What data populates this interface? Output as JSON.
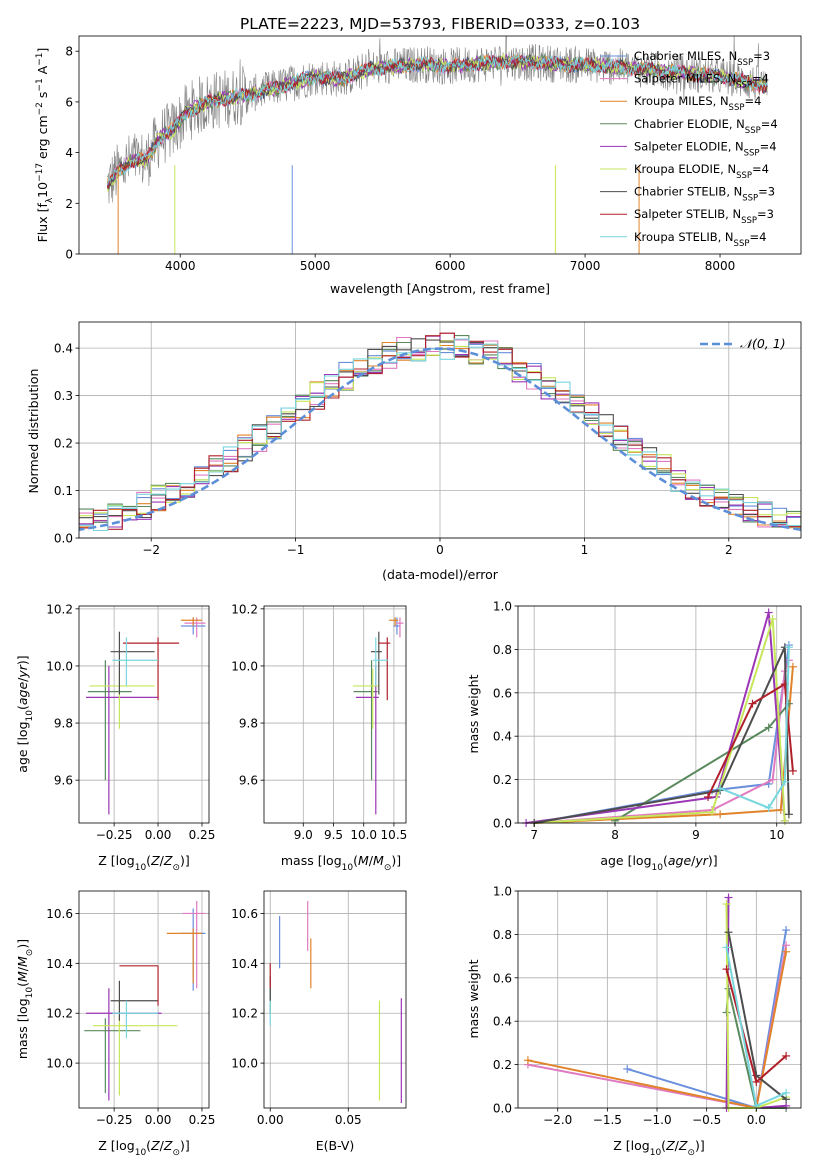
{
  "figure": {
    "title": "PLATE=2223, MJD=53793, FIBERID=0333, z=0.103"
  },
  "colors": {
    "Chabrier MILES": "#6a8fdc",
    "Salpeter MILES": "#e07ac0",
    "Kroupa MILES": "#e0832a",
    "Chabrier ELODIE": "#5a8a5e",
    "Salpeter ELODIE": "#9b36b6",
    "Kroupa ELODIE": "#c7e65a",
    "Chabrier STELIB": "#4d4d4d",
    "Salpeter STELIB": "#b0202a",
    "Kroupa STELIB": "#78d6de",
    "observed": "#808080",
    "normal": "#5d8fd8"
  },
  "legend_spectrum": [
    {
      "model": "Chabrier MILES",
      "text": "Chabrier MILES, N",
      "sub": "SSP",
      "tail": "=3"
    },
    {
      "model": "Salpeter MILES",
      "text": "Salpeter MILES, N",
      "sub": "SSP",
      "tail": "=4"
    },
    {
      "model": "Kroupa MILES",
      "text": "Kroupa MILES, N",
      "sub": "SSP",
      "tail": "=4"
    },
    {
      "model": "Chabrier ELODIE",
      "text": "Chabrier ELODIE, N",
      "sub": "SSP",
      "tail": "=4"
    },
    {
      "model": "Salpeter ELODIE",
      "text": "Salpeter ELODIE, N",
      "sub": "SSP",
      "tail": "=4"
    },
    {
      "model": "Kroupa ELODIE",
      "text": "Kroupa ELODIE, N",
      "sub": "SSP",
      "tail": "=4"
    },
    {
      "model": "Chabrier STELIB",
      "text": "Chabrier STELIB, N",
      "sub": "SSP",
      "tail": "=3"
    },
    {
      "model": "Salpeter STELIB",
      "text": "Salpeter STELIB, N",
      "sub": "SSP",
      "tail": "=3"
    },
    {
      "model": "Kroupa STELIB",
      "text": "Kroupa STELIB, N",
      "sub": "SSP",
      "tail": "=4"
    }
  ],
  "legend_hist": "𝒩(0, 1)",
  "chart_data": [
    {
      "panel": "spectrum",
      "type": "line",
      "title": "PLATE=2223, MJD=53793, FIBERID=0333, z=0.103",
      "xlabel": "wavelength [Angstrom, rest frame]",
      "ylabel": "Flux [f_λ 10^-17 erg cm^-2 s^-1 A^-1]",
      "xlim": [
        3250,
        8600
      ],
      "ylim": [
        0,
        8.6
      ],
      "xticks": [
        4000,
        5000,
        6000,
        7000,
        8000
      ],
      "yticks": [
        0,
        2,
        4,
        6,
        8
      ],
      "continuum": {
        "x": [
          3460,
          3550,
          3650,
          3750,
          3850,
          3950,
          4050,
          4200,
          4400,
          4600,
          4800,
          5000,
          5200,
          5400,
          5600,
          5800,
          6000,
          6200,
          6400,
          6600,
          6800,
          7000,
          7200,
          7400,
          7600,
          7800,
          8000,
          8200,
          8350
        ],
        "y": [
          2.7,
          3.3,
          3.7,
          3.7,
          4.6,
          4.9,
          5.6,
          6.0,
          6.2,
          6.4,
          6.7,
          7.0,
          6.9,
          7.3,
          7.4,
          7.5,
          7.4,
          7.5,
          7.6,
          7.55,
          7.5,
          7.45,
          7.4,
          7.3,
          7.2,
          7.1,
          7.0,
          6.8,
          6.6
        ]
      },
      "observed_noise": 0.75
    },
    {
      "panel": "residuals",
      "type": "histogram",
      "xlabel": "(data-model)/error",
      "ylabel": "Normed distribution",
      "xlim": [
        -2.5,
        2.5
      ],
      "ylim": [
        0,
        0.455
      ],
      "xticks": [
        -2,
        -1,
        0,
        1,
        2
      ],
      "yticks": [
        0,
        0.1,
        0.2,
        0.3,
        0.4
      ],
      "bin_width": 0.1,
      "reference": "N(0,1)"
    },
    {
      "panel": "Z-age",
      "type": "errorbar",
      "xlabel": "Z [log10(Z/Z_sun)]",
      "ylabel": "age [log10(age/yr)]",
      "xlim": [
        -0.45,
        0.29
      ],
      "ylim": [
        9.45,
        10.21
      ],
      "xticks": [
        -0.25,
        0.0,
        0.25
      ],
      "yticks": [
        9.6,
        9.8,
        10.0,
        10.2
      ],
      "points": [
        {
          "model": "Chabrier MILES",
          "x": 0.2,
          "y": 10.14,
          "xerr": [
            0.07,
            0.07
          ],
          "yerr": [
            0.03,
            0.03
          ]
        },
        {
          "model": "Salpeter MILES",
          "x": 0.22,
          "y": 10.15,
          "xerr": [
            0.07,
            0.05
          ],
          "yerr": [
            0.05,
            0.02
          ]
        },
        {
          "model": "Kroupa MILES",
          "x": 0.2,
          "y": 10.16,
          "xerr": [
            0.07,
            0.05
          ],
          "yerr": [
            0.02,
            0.01
          ]
        },
        {
          "model": "Chabrier ELODIE",
          "x": -0.3,
          "y": 9.91,
          "xerr": [
            0.1,
            0.15
          ],
          "yerr": [
            0.31,
            0.11
          ]
        },
        {
          "model": "Salpeter ELODIE",
          "x": -0.28,
          "y": 9.89,
          "xerr": [
            0.13,
            0.28
          ],
          "yerr": [
            0.41,
            0.11
          ]
        },
        {
          "model": "Kroupa ELODIE",
          "x": -0.22,
          "y": 9.93,
          "xerr": [
            0.17,
            0.2
          ],
          "yerr": [
            0.15,
            0.06
          ]
        },
        {
          "model": "Chabrier STELIB",
          "x": -0.22,
          "y": 10.05,
          "xerr": [
            0.05,
            0.2
          ],
          "yerr": [
            0.15,
            0.07
          ]
        },
        {
          "model": "Salpeter STELIB",
          "x": 0.0,
          "y": 10.08,
          "xerr": [
            0.2,
            0.12
          ],
          "yerr": [
            0.2,
            0.02
          ]
        },
        {
          "model": "Kroupa STELIB",
          "x": -0.18,
          "y": 10.02,
          "xerr": [
            0.08,
            0.18
          ],
          "yerr": [
            0.09,
            0.08
          ]
        }
      ]
    },
    {
      "panel": "mass-age",
      "type": "errorbar",
      "xlabel": "mass [log10(M/M_sun)]",
      "ylabel": "",
      "xlim": [
        8.35,
        10.7
      ],
      "ylim": [
        9.45,
        10.21
      ],
      "xticks": [
        9.0,
        9.5,
        10.0,
        10.5
      ],
      "yticks": [
        9.6,
        9.8,
        10.0,
        10.2
      ],
      "points": [
        {
          "model": "Chabrier MILES",
          "x": 10.55,
          "y": 10.14,
          "xerr": [
            0.06,
            0.06
          ],
          "yerr": [
            0.03,
            0.03
          ]
        },
        {
          "model": "Salpeter MILES",
          "x": 10.6,
          "y": 10.15,
          "xerr": [
            0.06,
            0.06
          ],
          "yerr": [
            0.05,
            0.02
          ]
        },
        {
          "model": "Kroupa MILES",
          "x": 10.52,
          "y": 10.16,
          "xerr": [
            0.1,
            0.05
          ],
          "yerr": [
            0.02,
            0.01
          ]
        },
        {
          "model": "Chabrier ELODIE",
          "x": 10.13,
          "y": 9.91,
          "xerr": [
            0.3,
            0.1
          ],
          "yerr": [
            0.31,
            0.11
          ]
        },
        {
          "model": "Salpeter ELODIE",
          "x": 10.2,
          "y": 9.89,
          "xerr": [
            0.33,
            0.05
          ],
          "yerr": [
            0.41,
            0.11
          ]
        },
        {
          "model": "Kroupa ELODIE",
          "x": 10.15,
          "y": 9.93,
          "xerr": [
            0.33,
            0.1
          ],
          "yerr": [
            0.15,
            0.06
          ]
        },
        {
          "model": "Chabrier STELIB",
          "x": 10.25,
          "y": 10.05,
          "xerr": [
            0.13,
            0.05
          ],
          "yerr": [
            0.15,
            0.07
          ]
        },
        {
          "model": "Salpeter STELIB",
          "x": 10.39,
          "y": 10.08,
          "xerr": [
            0.15,
            0.05
          ],
          "yerr": [
            0.2,
            0.02
          ]
        },
        {
          "model": "Kroupa STELIB",
          "x": 10.2,
          "y": 10.02,
          "xerr": [
            0.05,
            0.2
          ],
          "yerr": [
            0.09,
            0.08
          ]
        }
      ]
    },
    {
      "panel": "age-weight",
      "type": "line",
      "xlabel": "age [log10(age/yr)]",
      "ylabel": "mass weight",
      "xlim": [
        6.8,
        10.3
      ],
      "ylim": [
        0,
        1
      ],
      "xticks": [
        7,
        8,
        9,
        10
      ],
      "yticks": [
        0,
        0.2,
        0.4,
        0.6,
        0.8,
        1.0
      ],
      "series": [
        {
          "model": "Chabrier MILES",
          "x": [
            7.0,
            9.2,
            9.9,
            10.15
          ],
          "y": [
            0.0,
            0.15,
            0.18,
            0.82
          ]
        },
        {
          "model": "Salpeter MILES",
          "x": [
            7.0,
            9.2,
            9.95,
            10.1,
            10.15
          ],
          "y": [
            0.0,
            0.06,
            0.2,
            0.7,
            0.75
          ]
        },
        {
          "model": "Kroupa MILES",
          "x": [
            7.0,
            9.3,
            10.05,
            10.2
          ],
          "y": [
            0.0,
            0.04,
            0.06,
            0.72
          ]
        },
        {
          "model": "Chabrier ELODIE",
          "x": [
            8.0,
            9.9,
            10.15
          ],
          "y": [
            0.01,
            0.44,
            0.55
          ]
        },
        {
          "model": "Salpeter ELODIE",
          "x": [
            6.9,
            9.25,
            9.9,
            10.1
          ],
          "y": [
            0.0,
            0.12,
            0.97,
            0.01
          ]
        },
        {
          "model": "Kroupa ELODIE",
          "x": [
            7.0,
            9.2,
            9.95,
            10.1
          ],
          "y": [
            0.0,
            0.05,
            0.94,
            0.01
          ]
        },
        {
          "model": "Chabrier STELIB",
          "x": [
            7.0,
            9.3,
            10.1,
            10.15
          ],
          "y": [
            0.0,
            0.15,
            0.81,
            0.04
          ]
        },
        {
          "model": "Salpeter STELIB",
          "x": [
            9.15,
            9.7,
            10.1,
            10.2
          ],
          "y": [
            0.12,
            0.55,
            0.64,
            0.24
          ]
        },
        {
          "model": "Kroupa STELIB",
          "x": [
            9.3,
            9.9,
            10.1,
            10.15
          ],
          "y": [
            0.16,
            0.07,
            0.19,
            0.81
          ]
        }
      ]
    },
    {
      "panel": "Z-mass",
      "type": "errorbar",
      "xlabel": "Z [log10(Z/Z_sun)]",
      "ylabel": "mass [log10(M/M_sun)]",
      "xlim": [
        -0.45,
        0.29
      ],
      "ylim": [
        9.82,
        10.69
      ],
      "xticks": [
        -0.25,
        0.0,
        0.25
      ],
      "yticks": [
        10.0,
        10.2,
        10.4,
        10.6
      ],
      "points": [
        {
          "model": "Chabrier MILES",
          "x": 0.2,
          "y": 10.52,
          "xerr": [
            0.07,
            0.07
          ],
          "yerr": [
            0.23,
            0.1
          ]
        },
        {
          "model": "Salpeter MILES",
          "x": 0.22,
          "y": 10.6,
          "xerr": [
            0.08,
            0.05
          ],
          "yerr": [
            0.3,
            0.05
          ]
        },
        {
          "model": "Kroupa MILES",
          "x": 0.2,
          "y": 10.52,
          "xerr": [
            0.15,
            0.05
          ],
          "yerr": [
            0.2,
            0.02
          ]
        },
        {
          "model": "Chabrier ELODIE",
          "x": -0.3,
          "y": 10.13,
          "xerr": [
            0.12,
            0.2
          ],
          "yerr": [
            0.25,
            0.05
          ]
        },
        {
          "model": "Salpeter ELODIE",
          "x": -0.28,
          "y": 10.2,
          "xerr": [
            0.13,
            0.3
          ],
          "yerr": [
            0.35,
            0.1
          ]
        },
        {
          "model": "Kroupa ELODIE",
          "x": -0.22,
          "y": 10.15,
          "xerr": [
            0.15,
            0.33
          ],
          "yerr": [
            0.28,
            0.1
          ]
        },
        {
          "model": "Chabrier STELIB",
          "x": -0.22,
          "y": 10.25,
          "xerr": [
            0.05,
            0.22
          ],
          "yerr": [
            0.08,
            0.08
          ]
        },
        {
          "model": "Salpeter STELIB",
          "x": -0.0,
          "y": 10.39,
          "xerr": [
            0.22,
            0.0
          ],
          "yerr": [
            0.16,
            0.0
          ]
        },
        {
          "model": "Kroupa STELIB",
          "x": -0.18,
          "y": 10.2,
          "xerr": [
            0.08,
            0.18
          ],
          "yerr": [
            0.1,
            0.05
          ]
        }
      ]
    },
    {
      "panel": "EBV-mass",
      "type": "errorbar",
      "xlabel": "E(B-V)",
      "ylabel": "",
      "xlim": [
        -0.004,
        0.087
      ],
      "ylim": [
        9.82,
        10.69
      ],
      "xticks": [
        0.0,
        0.05
      ],
      "yticks": [
        10.0,
        10.2,
        10.4,
        10.6
      ],
      "points": [
        {
          "model": "Chabrier MILES",
          "x": 0.006,
          "y": 10.48,
          "xerr": [
            0,
            0
          ],
          "yerr": [
            0.1,
            0.11
          ]
        },
        {
          "model": "Salpeter MILES",
          "x": 0.024,
          "y": 10.55,
          "xerr": [
            0,
            0
          ],
          "yerr": [
            0.1,
            0.1
          ]
        },
        {
          "model": "Kroupa MILES",
          "x": 0.026,
          "y": 10.4,
          "xerr": [
            0,
            0
          ],
          "yerr": [
            0.1,
            0.1
          ]
        },
        {
          "model": "Chabrier ELODIE",
          "x": 0.0,
          "y": 10.25,
          "xerr": [
            0,
            0
          ],
          "yerr": [
            0.05,
            0.05
          ]
        },
        {
          "model": "Salpeter ELODIE",
          "x": 0.084,
          "y": 10.05,
          "xerr": [
            0,
            0
          ],
          "yerr": [
            0.21,
            0.21
          ]
        },
        {
          "model": "Kroupa ELODIE",
          "x": 0.07,
          "y": 10.05,
          "xerr": [
            0,
            0
          ],
          "yerr": [
            0.2,
            0.2
          ]
        },
        {
          "model": "Chabrier STELIB",
          "x": 0.0,
          "y": 10.3,
          "xerr": [
            0,
            0
          ],
          "yerr": [
            0.05,
            0.05
          ]
        },
        {
          "model": "Salpeter STELIB",
          "x": 0.0,
          "y": 10.35,
          "xerr": [
            0,
            0
          ],
          "yerr": [
            0.05,
            0.05
          ]
        },
        {
          "model": "Kroupa STELIB",
          "x": 0.0,
          "y": 10.2,
          "xerr": [
            0,
            0
          ],
          "yerr": [
            0.05,
            0.05
          ]
        }
      ]
    },
    {
      "panel": "Z-weight",
      "type": "line",
      "xlabel": "Z [log10(Z/Z_sun)]",
      "ylabel": "mass weight",
      "xlim": [
        -2.4,
        0.45
      ],
      "ylim": [
        0,
        1
      ],
      "xticks": [
        -2.0,
        -1.5,
        -1.0,
        -0.5,
        0.0
      ],
      "yticks": [
        0,
        0.2,
        0.4,
        0.6,
        0.8,
        1.0
      ],
      "series": [
        {
          "model": "Chabrier MILES",
          "x": [
            -1.3,
            0.0,
            0.3
          ],
          "y": [
            0.18,
            0.0,
            0.82
          ]
        },
        {
          "model": "Salpeter MILES",
          "x": [
            -2.3,
            0.0,
            0.3
          ],
          "y": [
            0.2,
            0.0,
            0.75
          ]
        },
        {
          "model": "Kroupa MILES",
          "x": [
            -2.3,
            0.0,
            0.3
          ],
          "y": [
            0.22,
            0.0,
            0.72
          ]
        },
        {
          "model": "Chabrier ELODIE",
          "x": [
            -0.3,
            -0.28,
            0.0,
            0.3
          ],
          "y": [
            0.44,
            0.55,
            0.0,
            0.0
          ]
        },
        {
          "model": "Salpeter ELODIE",
          "x": [
            -0.28,
            -0.3,
            0.0,
            0.3
          ],
          "y": [
            0.97,
            0.0,
            0.0,
            0.01
          ]
        },
        {
          "model": "Kroupa ELODIE",
          "x": [
            -0.3,
            -0.28,
            0.0,
            0.3
          ],
          "y": [
            0.94,
            0.0,
            0.0,
            0.05
          ]
        },
        {
          "model": "Chabrier STELIB",
          "x": [
            -0.28,
            0.0,
            0.3
          ],
          "y": [
            0.81,
            0.15,
            0.04
          ]
        },
        {
          "model": "Salpeter STELIB",
          "x": [
            -0.3,
            0.0,
            0.3
          ],
          "y": [
            0.64,
            0.12,
            0.24
          ]
        },
        {
          "model": "Kroupa STELIB",
          "x": [
            -0.3,
            0.0,
            0.3
          ],
          "y": [
            0.74,
            0.01,
            0.07
          ]
        }
      ]
    }
  ]
}
